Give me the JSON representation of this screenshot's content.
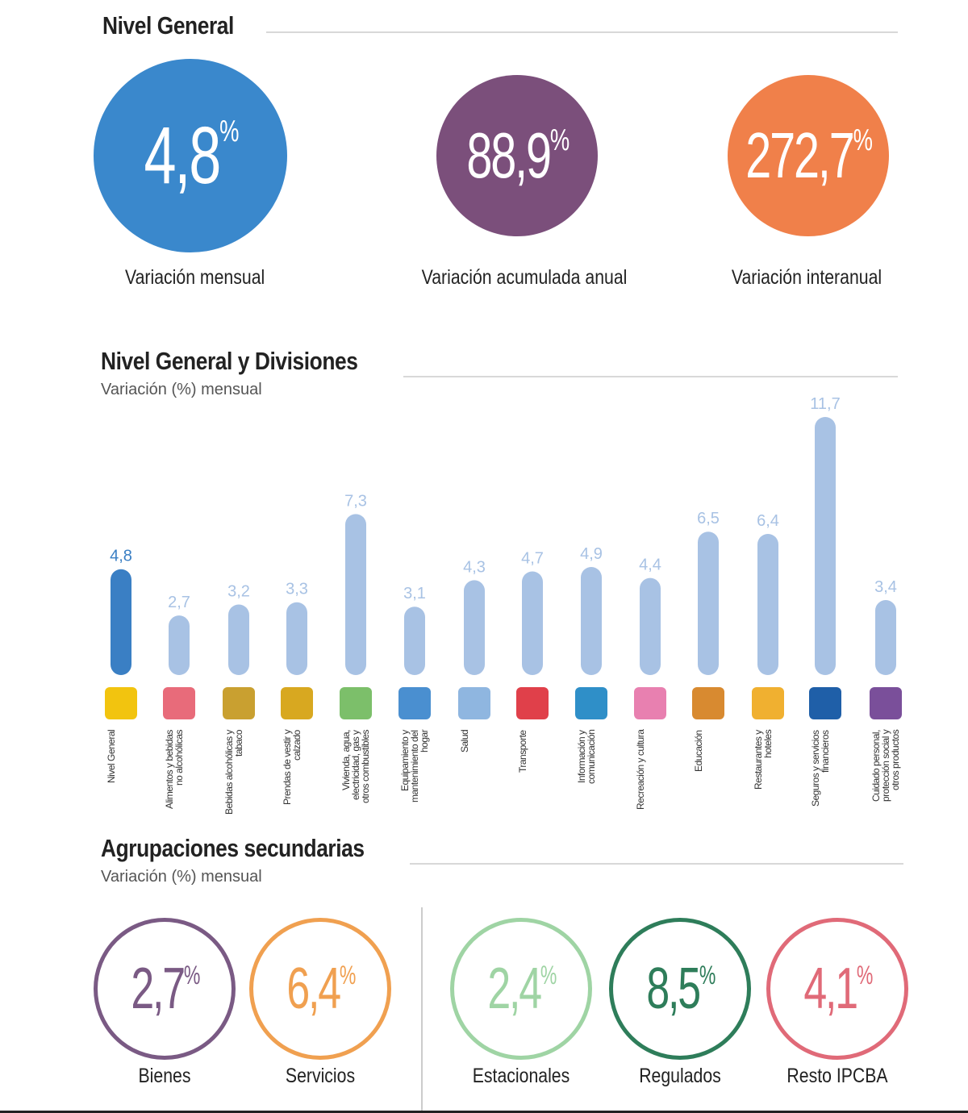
{
  "nivel_general": {
    "title": "Nivel General",
    "cards": [
      {
        "value": "4,8",
        "unit": "%",
        "label": "Variación mensual",
        "color": "#3a88cc"
      },
      {
        "value": "88,9",
        "unit": "%",
        "label": "Variación acumulada anual",
        "color": "#7b4f7b"
      },
      {
        "value": "272,7",
        "unit": "%",
        "label": "Variación interanual",
        "color": "#f0804a"
      }
    ]
  },
  "chart_data": {
    "type": "bar",
    "title": "Nivel General y Divisiones",
    "subtitle": "Variación (%) mensual",
    "categories": [
      "Nivel General",
      "Alimentos y bebidas no alcohólicas",
      "Bebidas alcohólicas y tabaco",
      "Prendas de vestir y calzado",
      "Vivienda, agua, electricidad, gas y otros combustibles",
      "Equipamiento y mantenimiento del hogar",
      "Salud",
      "Transporte",
      "Información y comunicación",
      "Recreación y cultura",
      "Educación",
      "Restaurantes y hoteles",
      "Seguros y servicios financieros",
      "Cuidado personal, protección social y otros productos"
    ],
    "values": [
      4.8,
      2.7,
      3.2,
      3.3,
      7.3,
      3.1,
      4.3,
      4.7,
      4.9,
      4.4,
      6.5,
      6.4,
      11.7,
      3.4
    ],
    "value_labels": [
      "4,8",
      "2,7",
      "3,2",
      "3,3",
      "7,3",
      "3,1",
      "4,3",
      "4,7",
      "4,9",
      "4,4",
      "6,5",
      "6,4",
      "11,7",
      "3,4"
    ],
    "icons": [
      "ipc-ba-logo-icon",
      "food-icon",
      "wine-bottle-icon",
      "jacket-icon",
      "house-icon",
      "washing-machine-icon",
      "doctor-icon",
      "car-plane-icon",
      "computer-icon",
      "theater-masks-icon",
      "school-icon",
      "cutlery-icon",
      "bank-icon",
      "personal-care-icon"
    ],
    "icon_colors": [
      "#f2c40f",
      "#e86b7a",
      "#c9a030",
      "#d8a820",
      "#7cbf6a",
      "#4a8fd0",
      "#8fb6e0",
      "#e0404a",
      "#2f8fc8",
      "#e880b0",
      "#d88a30",
      "#f0b030",
      "#1f5fa8",
      "#7a4f9a"
    ],
    "ylim": [
      0,
      12
    ],
    "highlight_color": "#3a7fc4",
    "bar_color": "#a8c2e4",
    "grid": false
  },
  "secundarias": {
    "title": "Agrupaciones secundarias",
    "subtitle": "Variación (%) mensual",
    "cards": [
      {
        "value": "2,7",
        "unit": "%",
        "label": "Bienes",
        "color": "#7a5a84"
      },
      {
        "value": "6,4",
        "unit": "%",
        "label": "Servicios",
        "color": "#f0a050"
      },
      {
        "value": "2,4",
        "unit": "%",
        "label": "Estacionales",
        "color": "#9fd4a4"
      },
      {
        "value": "8,5",
        "unit": "%",
        "label": "Regulados",
        "color": "#2e7d5a"
      },
      {
        "value": "4,1",
        "unit": "%",
        "label": "Resto IPCBA",
        "color": "#e06a78"
      }
    ]
  }
}
